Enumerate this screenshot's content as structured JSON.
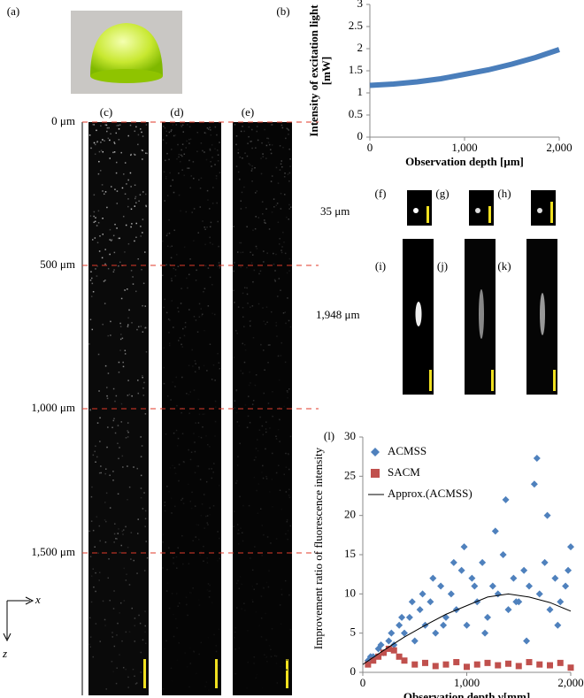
{
  "figure": {
    "panel_labels": [
      "(a)",
      "(b)",
      "(c)",
      "(d)",
      "(e)",
      "(f)",
      "(g)",
      "(h)",
      "(i)",
      "(j)",
      "(k)",
      "(l)"
    ],
    "depth_labels": [
      "0 μm",
      "500 μm",
      "1,000 μm",
      "1,500 μm"
    ],
    "row_labels": [
      "35 μm",
      "1,948 μm"
    ],
    "axis_x": "x",
    "axis_z": "z"
  },
  "chart_data": [
    {
      "type": "line",
      "y_label": "Intensity of excitation light [mW]",
      "x_label": "Observation depth   [μm]",
      "x": [
        0,
        250,
        500,
        750,
        1000,
        1250,
        1500,
        1750,
        2000
      ],
      "series": [
        {
          "name": "Intensity",
          "color": "#4a7ebb",
          "values": [
            1.17,
            1.2,
            1.25,
            1.32,
            1.42,
            1.52,
            1.65,
            1.8,
            1.98
          ]
        }
      ],
      "xlim": [
        0,
        2000
      ],
      "ylim": [
        0,
        3
      ],
      "xticks": [
        0,
        {
          "value": 1000,
          "label": "1,000"
        },
        {
          "value": 2000,
          "label": "2,000"
        }
      ],
      "yticks": [
        0,
        0.5,
        1,
        1.5,
        2,
        2.5,
        3
      ]
    },
    {
      "type": "scatter",
      "y_label": "Improvement ratio of fluorescence intensity",
      "x_label": "Observation depth γ[mm]",
      "series": [
        {
          "name": "ACMSS",
          "color": "#4f81bd",
          "marker": "diamond",
          "x": [
            50,
            100,
            150,
            200,
            250,
            300,
            350,
            400,
            450,
            500,
            550,
            600,
            650,
            700,
            750,
            800,
            850,
            900,
            950,
            1000,
            1050,
            1100,
            1150,
            1200,
            1250,
            1300,
            1350,
            1400,
            1450,
            1500,
            1550,
            1600,
            1650,
            1700,
            1750,
            1800,
            1850,
            1900,
            1950,
            2000,
            75,
            175,
            275,
            375,
            475,
            575,
            675,
            775,
            875,
            975,
            1075,
            1175,
            1275,
            1375,
            1475,
            1575,
            1675,
            1775,
            1875,
            1975
          ],
          "values": [
            1.5,
            2,
            3,
            2.5,
            4,
            3.5,
            6,
            5,
            7,
            4,
            8,
            6,
            9,
            5,
            11,
            7,
            10,
            8,
            13,
            6,
            12,
            9,
            14,
            7,
            11,
            10,
            15,
            8,
            12,
            9,
            13,
            11,
            24,
            10,
            14,
            8,
            12,
            9,
            11,
            16,
            2,
            3.5,
            5,
            7,
            9,
            10,
            12,
            6,
            14,
            16,
            11,
            5,
            18,
            22,
            9,
            4,
            27.3,
            20,
            6,
            13
          ]
        },
        {
          "name": "SACM",
          "color": "#c0504d",
          "marker": "square",
          "x": [
            50,
            100,
            150,
            200,
            250,
            300,
            350,
            400,
            500,
            600,
            700,
            800,
            900,
            1000,
            1100,
            1200,
            1300,
            1400,
            1500,
            1600,
            1700,
            1800,
            1900,
            2000
          ],
          "values": [
            1,
            1.5,
            2,
            2.5,
            3,
            2.8,
            2,
            1.5,
            1,
            1.2,
            0.8,
            1,
            1.3,
            0.7,
            1,
            1.2,
            0.9,
            1.1,
            0.8,
            1.3,
            1,
            0.9,
            1.2,
            0.6
          ]
        },
        {
          "name": "Approx.(ACMSS)",
          "color": "#000000",
          "marker": "line",
          "x": [
            0,
            200,
            400,
            600,
            800,
            1000,
            1200,
            1400,
            1600,
            1800,
            2000
          ],
          "values": [
            1,
            2.8,
            4.5,
            6,
            7.4,
            8.5,
            9.6,
            10,
            9.6,
            8.9,
            7.8
          ]
        }
      ],
      "xlim": [
        0,
        2000
      ],
      "ylim": [
        0,
        30
      ],
      "xticks": [
        0,
        {
          "value": 1000,
          "label": "1,000"
        },
        {
          "value": 2000,
          "label": "2,000"
        }
      ],
      "yticks": [
        0,
        5,
        10,
        15,
        20,
        25,
        30
      ]
    }
  ]
}
